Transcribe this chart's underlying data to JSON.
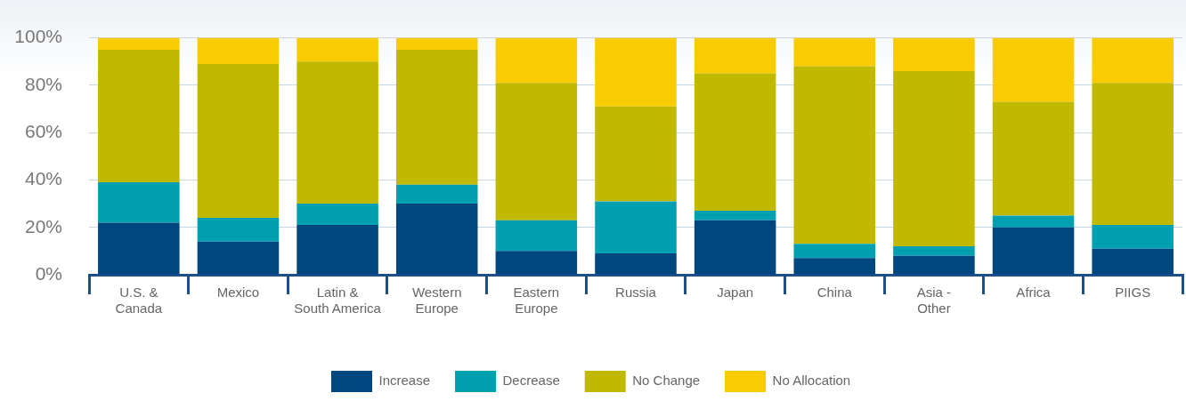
{
  "chart_data": {
    "type": "bar",
    "stacked": true,
    "categories": [
      "U.S. &\nCanada",
      "Mexico",
      "Latin &\nSouth America",
      "Western\nEurope",
      "Eastern\nEurope",
      "Russia",
      "Japan",
      "China",
      "Asia -\nOther",
      "Africa",
      "PIIGS"
    ],
    "series": [
      {
        "name": "Increase",
        "color": "#00467f",
        "values": [
          22,
          14,
          21,
          30,
          10,
          9,
          23,
          7,
          8,
          20,
          11
        ]
      },
      {
        "name": "Decrease",
        "color": "#00a0b0",
        "values": [
          17,
          10,
          9,
          8,
          13,
          22,
          4,
          6,
          4,
          5,
          10
        ]
      },
      {
        "name": "No Change",
        "color": "#c0b900",
        "values": [
          56,
          65,
          60,
          57,
          58,
          40,
          58,
          75,
          74,
          48,
          60
        ]
      },
      {
        "name": "No Allocation",
        "color": "#f8cc00",
        "values": [
          5,
          11,
          10,
          5,
          19,
          29,
          15,
          12,
          14,
          27,
          19
        ]
      }
    ],
    "ylim": [
      0,
      100
    ],
    "yticks": [
      {
        "value": 0,
        "label": "0%"
      },
      {
        "value": 20,
        "label": "20%"
      },
      {
        "value": 40,
        "label": "40%"
      },
      {
        "value": 60,
        "label": "60%"
      },
      {
        "value": 80,
        "label": "80%"
      },
      {
        "value": 100,
        "label": "100%"
      }
    ],
    "grid": "y",
    "legend": "bottom"
  }
}
